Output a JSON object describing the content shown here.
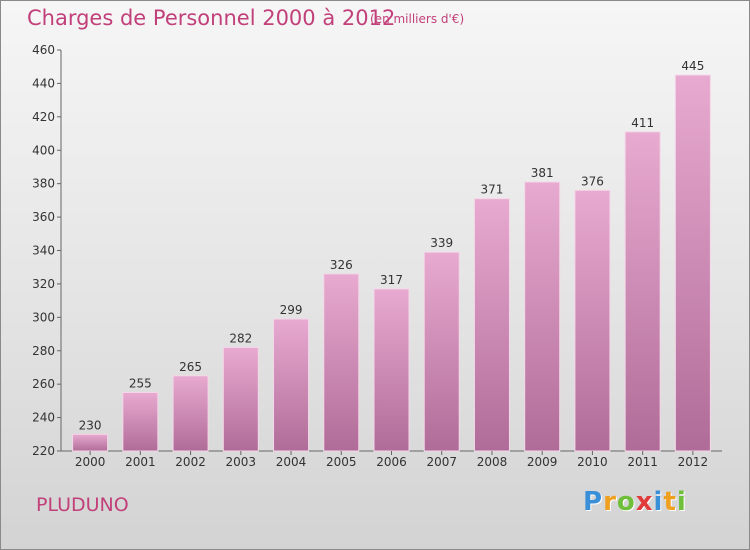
{
  "title": "Charges de Personnel 2000 à 2012",
  "unit_note": "(en milliers d'€)",
  "commune": "PLUDUNO",
  "logo": {
    "letters": [
      "P",
      "r",
      "o",
      "x",
      "i",
      "t",
      "i"
    ],
    "colors": [
      "#3a8fd9",
      "#f0a020",
      "#6fbf3a",
      "#e03a3a",
      "#3a8fd9",
      "#f0a020",
      "#6fbf3a"
    ]
  },
  "colors": {
    "bar_top": "#e8aad0",
    "bar_bottom": "#b06c98",
    "title": "#c2407a"
  },
  "chart_data": {
    "type": "bar",
    "title": "Charges de Personnel 2000 à 2012",
    "subtitle": "(en milliers d'€)",
    "categories": [
      "2000",
      "2001",
      "2002",
      "2003",
      "2004",
      "2005",
      "2006",
      "2007",
      "2008",
      "2009",
      "2010",
      "2011",
      "2012"
    ],
    "values": [
      230,
      255,
      265,
      282,
      299,
      326,
      317,
      339,
      371,
      381,
      376,
      411,
      445
    ],
    "ylim": [
      220,
      460
    ],
    "yticks": [
      220,
      240,
      260,
      280,
      300,
      320,
      340,
      360,
      380,
      400,
      420,
      440,
      460
    ],
    "grid": false,
    "legend": "none"
  }
}
